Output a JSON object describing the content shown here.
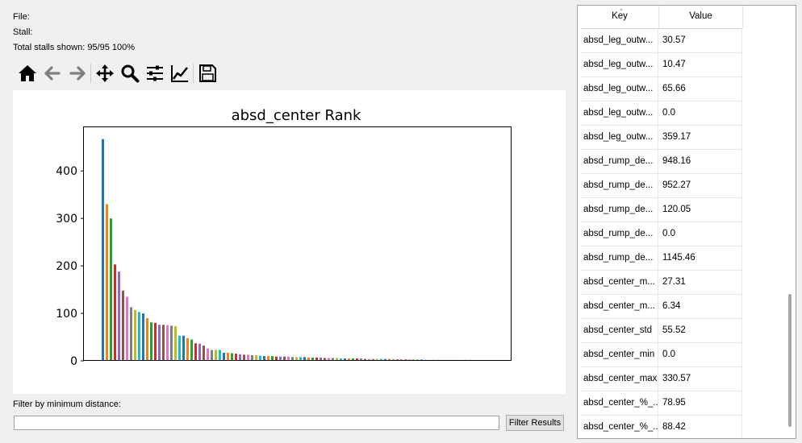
{
  "info": {
    "file_label": "File:",
    "stall_label": "Stall:",
    "total_stalls": "Total stalls shown: 95/95  100%"
  },
  "toolbar": {
    "buttons": [
      "home-icon",
      "back-arrow-icon",
      "forward-arrow-icon",
      "pan-move-icon",
      "zoom-magnifier-icon",
      "configure-subplots-icon",
      "edit-axes-line-icon",
      "save-floppy-icon"
    ]
  },
  "chart_data": {
    "type": "bar",
    "title": "absd_center Rank",
    "xlabel": "",
    "ylabel": "",
    "ylim": [
      0,
      492
    ],
    "yticks": [
      0,
      100,
      200,
      300,
      400
    ],
    "bar_colors": [
      "#1f77b4",
      "#ff7f0e",
      "#2ca02c",
      "#d62728",
      "#9467bd",
      "#8c564b",
      "#e377c2",
      "#7f7f7f",
      "#bcbd22",
      "#17becf"
    ],
    "values": [
      467,
      330,
      300,
      203,
      188,
      148,
      135,
      113,
      107,
      103,
      100,
      90,
      81,
      80,
      76,
      76,
      75,
      74,
      73,
      53,
      53,
      48,
      45,
      37,
      36,
      32,
      26,
      23,
      23,
      23,
      17,
      17,
      16,
      15,
      14,
      13,
      13,
      12,
      12,
      11,
      10,
      10,
      10,
      9,
      9,
      9,
      9,
      8,
      8,
      8,
      8,
      7,
      7,
      7,
      7,
      6,
      6,
      6,
      6,
      5,
      5,
      5,
      5,
      5,
      5,
      4,
      4,
      4,
      4,
      4,
      4,
      4,
      3,
      3,
      3,
      3,
      3,
      3,
      3,
      3,
      2,
      2,
      2,
      2,
      2,
      2,
      2,
      2,
      2,
      2,
      2,
      2,
      1,
      1,
      1
    ]
  },
  "filter": {
    "label": "Filter by minimum distance:",
    "input_value": "",
    "button_label": "Filter Results"
  },
  "table": {
    "headers": {
      "key": "Key",
      "value": "Value"
    },
    "rows": [
      {
        "key": "absd_leg_outw...",
        "value": "30.57"
      },
      {
        "key": "absd_leg_outw...",
        "value": "10.47"
      },
      {
        "key": "absd_leg_outw...",
        "value": "65.66"
      },
      {
        "key": "absd_leg_outw...",
        "value": "0.0"
      },
      {
        "key": "absd_leg_outw...",
        "value": "359.17"
      },
      {
        "key": "absd_rump_de...",
        "value": "948.16"
      },
      {
        "key": "absd_rump_de...",
        "value": "952.27"
      },
      {
        "key": "absd_rump_de...",
        "value": "120.05"
      },
      {
        "key": "absd_rump_de...",
        "value": "0.0"
      },
      {
        "key": "absd_rump_de...",
        "value": "1145.46"
      },
      {
        "key": "absd_center_m...",
        "value": "27.31"
      },
      {
        "key": "absd_center_m...",
        "value": "6.34"
      },
      {
        "key": "absd_center_std",
        "value": "55.52"
      },
      {
        "key": "absd_center_min",
        "value": "0.0"
      },
      {
        "key": "absd_center_max",
        "value": "330.57"
      },
      {
        "key": "absd_center_%_...",
        "value": "78.95"
      },
      {
        "key": "absd_center_%_...",
        "value": "88.42"
      }
    ]
  }
}
